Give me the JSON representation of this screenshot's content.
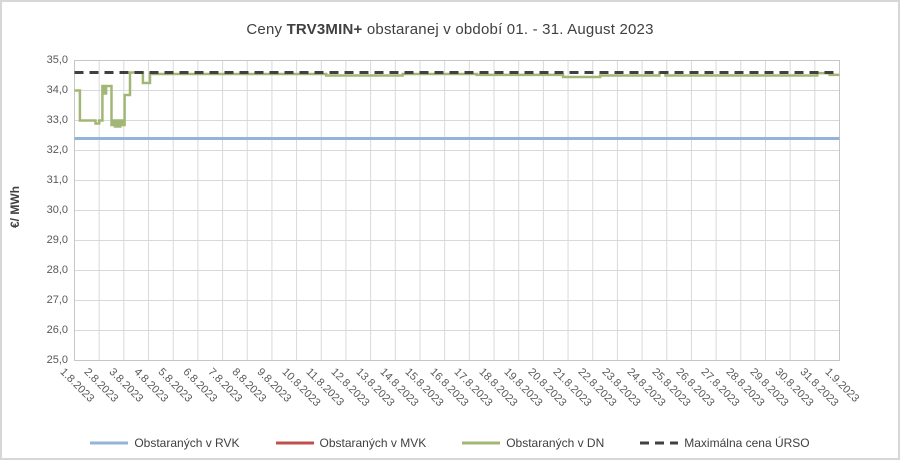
{
  "title": {
    "prefix": "Ceny ",
    "product": "TRV3MIN+",
    "suffix": " obstaranej v období 01. - 31. August 2023"
  },
  "chart_data": {
    "type": "line",
    "title": "Ceny TRV3MIN+ obstaranej v období 01. - 31. August 2023",
    "xlabel": "",
    "ylabel": "€/ MWh",
    "ylim": [
      25.0,
      35.0
    ],
    "ytick_step": 1.0,
    "ytick_labels": [
      "35,0",
      "34,0",
      "33,0",
      "32,0",
      "31,0",
      "30,0",
      "29,0",
      "28,0",
      "27,0",
      "26,0",
      "25,0"
    ],
    "xtick_labels": [
      "1.8.2023",
      "2.8.2023",
      "3.8.2023",
      "4.8.2023",
      "5.8.2023",
      "6.8.2023",
      "7.8.2023",
      "8.8.2023",
      "9.8.2023",
      "10.8.2023",
      "11.8.2023",
      "12.8.2023",
      "13.8.2023",
      "14.8.2023",
      "15.8.2023",
      "16.8.2023",
      "17.8.2023",
      "18.8.2023",
      "19.8.2023",
      "20.8.2023",
      "21.8.2023",
      "22.8.2023",
      "23.8.2023",
      "24.8.2023",
      "25.8.2023",
      "26.8.2023",
      "27.8.2023",
      "28.8.2023",
      "29.8.2023",
      "30.8.2023",
      "31.8.2023",
      "1.9.2023"
    ],
    "x_unit": "days_from_1_aug",
    "x_range": [
      0,
      31
    ],
    "grid": true,
    "legend_position": "bottom",
    "colors": {
      "grid": "#D9D9D9",
      "plot_border": "#C6C6C6",
      "tick_text": "#595959",
      "title_text": "#404040",
      "frame_border": "#D7D7D7"
    },
    "series": [
      {
        "name": "Obstaraných v RVK",
        "color": "#94B3D7",
        "style": "solid",
        "width": 3,
        "step": false,
        "points": [
          [
            0,
            32.4
          ],
          [
            31,
            32.4
          ]
        ]
      },
      {
        "name": "Obstaraných v MVK",
        "color": "#C0504D",
        "style": "solid",
        "width": 3,
        "step": false,
        "points": []
      },
      {
        "name": "Obstaraných v DN",
        "color": "#A2B776",
        "style": "solid",
        "width": 2.5,
        "step": true,
        "points": [
          [
            0,
            34.0
          ],
          [
            0.22,
            33.0
          ],
          [
            0.85,
            32.9
          ],
          [
            1.0,
            33.0
          ],
          [
            1.13,
            34.15
          ],
          [
            1.22,
            33.9
          ],
          [
            1.28,
            34.15
          ],
          [
            1.5,
            32.85
          ],
          [
            1.58,
            33.0
          ],
          [
            1.64,
            32.8
          ],
          [
            1.72,
            33.0
          ],
          [
            1.78,
            32.8
          ],
          [
            1.86,
            33.0
          ],
          [
            1.95,
            32.85
          ],
          [
            2.03,
            33.85
          ],
          [
            2.25,
            34.6
          ],
          [
            2.77,
            34.25
          ],
          [
            3.06,
            34.55
          ],
          [
            10.2,
            34.5
          ],
          [
            13.3,
            34.55
          ],
          [
            16.3,
            34.52
          ],
          [
            19.8,
            34.45
          ],
          [
            21.3,
            34.5
          ],
          [
            23.7,
            34.6
          ],
          [
            23.95,
            34.5
          ],
          [
            30.1,
            34.58
          ],
          [
            30.6,
            34.52
          ],
          [
            31,
            34.52
          ]
        ]
      },
      {
        "name": "Maximálna cena ÚRSO",
        "color": "#404040",
        "style": "dashed",
        "width": 3,
        "step": false,
        "points": [
          [
            0,
            34.6
          ],
          [
            31,
            34.6
          ]
        ]
      }
    ]
  }
}
